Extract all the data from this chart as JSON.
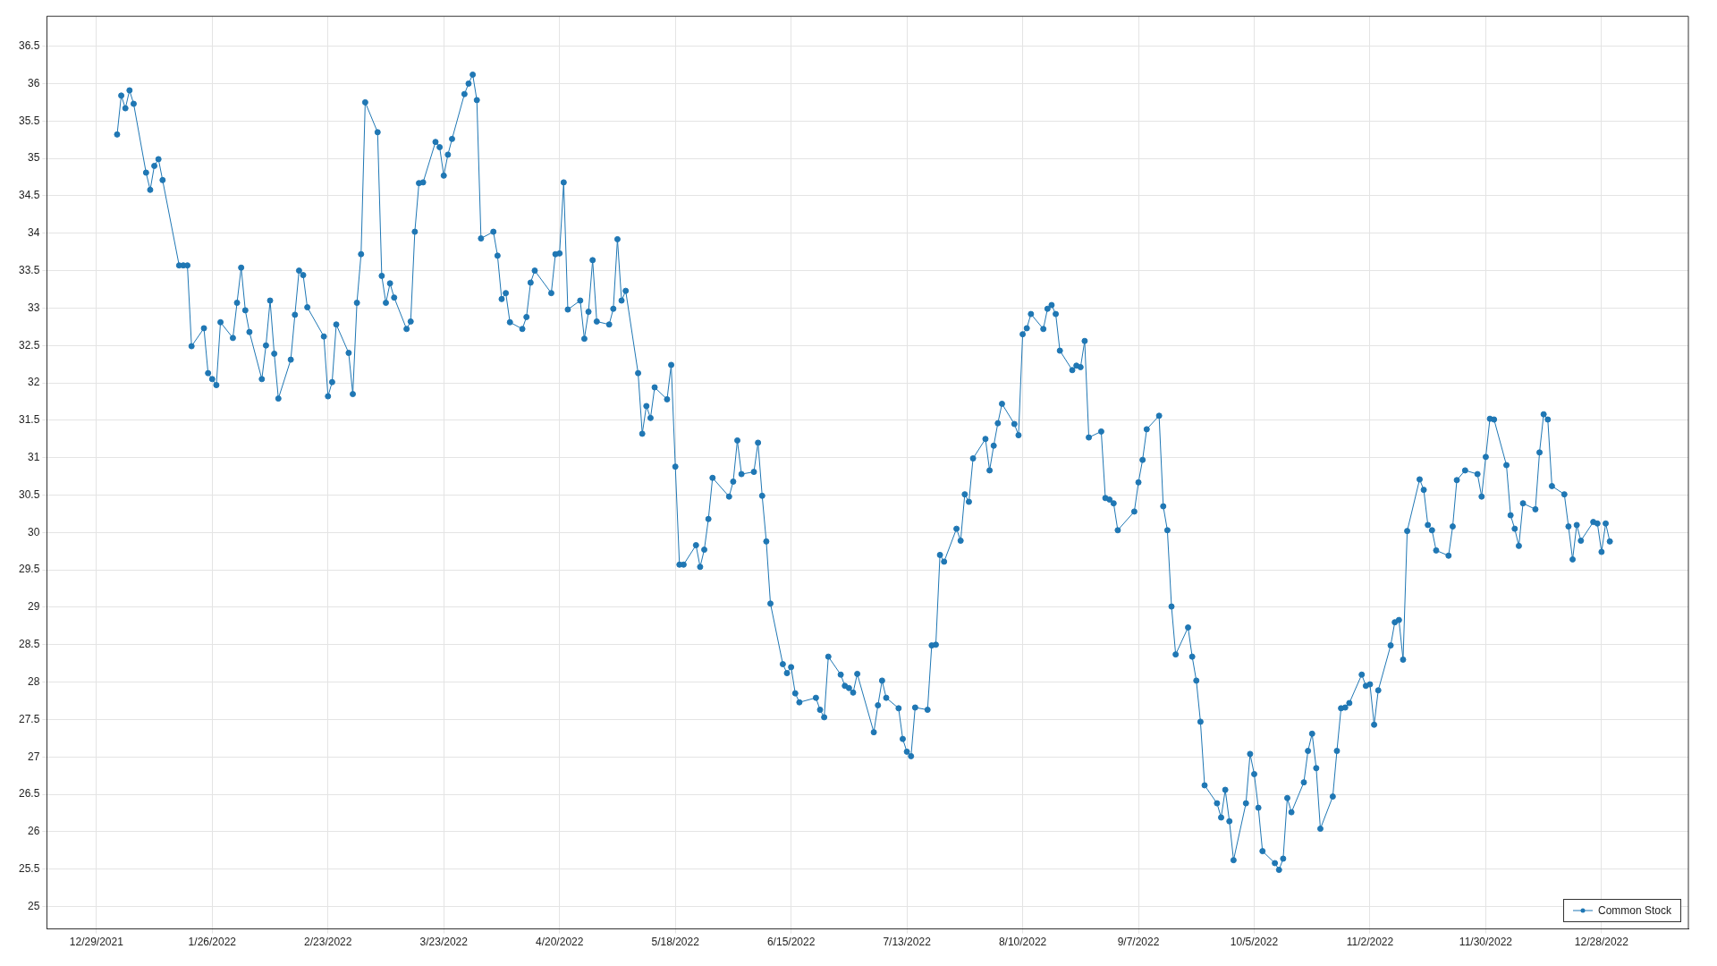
{
  "chart_data": {
    "type": "line",
    "x": [
      "2022-01-03",
      "2022-01-04",
      "2022-01-05",
      "2022-01-06",
      "2022-01-07",
      "2022-01-10",
      "2022-01-11",
      "2022-01-12",
      "2022-01-13",
      "2022-01-14",
      "2022-01-18",
      "2022-01-19",
      "2022-01-20",
      "2022-01-21",
      "2022-01-24",
      "2022-01-25",
      "2022-01-26",
      "2022-01-27",
      "2022-01-28",
      "2022-01-31",
      "2022-02-01",
      "2022-02-02",
      "2022-02-03",
      "2022-02-04",
      "2022-02-07",
      "2022-02-08",
      "2022-02-09",
      "2022-02-10",
      "2022-02-11",
      "2022-02-14",
      "2022-02-15",
      "2022-02-16",
      "2022-02-17",
      "2022-02-18",
      "2022-02-22",
      "2022-02-23",
      "2022-02-24",
      "2022-02-25",
      "2022-02-28",
      "2022-03-01",
      "2022-03-02",
      "2022-03-03",
      "2022-03-04",
      "2022-03-07",
      "2022-03-08",
      "2022-03-09",
      "2022-03-10",
      "2022-03-11",
      "2022-03-14",
      "2022-03-15",
      "2022-03-16",
      "2022-03-17",
      "2022-03-18",
      "2022-03-21",
      "2022-03-22",
      "2022-03-23",
      "2022-03-24",
      "2022-03-25",
      "2022-03-28",
      "2022-03-29",
      "2022-03-30",
      "2022-03-31",
      "2022-04-01",
      "2022-04-04",
      "2022-04-05",
      "2022-04-06",
      "2022-04-07",
      "2022-04-08",
      "2022-04-11",
      "2022-04-12",
      "2022-04-13",
      "2022-04-14",
      "2022-04-18",
      "2022-04-19",
      "2022-04-20",
      "2022-04-21",
      "2022-04-22",
      "2022-04-25",
      "2022-04-26",
      "2022-04-27",
      "2022-04-28",
      "2022-04-29",
      "2022-05-02",
      "2022-05-03",
      "2022-05-04",
      "2022-05-05",
      "2022-05-06",
      "2022-05-09",
      "2022-05-10",
      "2022-05-11",
      "2022-05-12",
      "2022-05-13",
      "2022-05-16",
      "2022-05-17",
      "2022-05-18",
      "2022-05-19",
      "2022-05-20",
      "2022-05-23",
      "2022-05-24",
      "2022-05-25",
      "2022-05-26",
      "2022-05-27",
      "2022-05-31",
      "2022-06-01",
      "2022-06-02",
      "2022-06-03",
      "2022-06-06",
      "2022-06-07",
      "2022-06-08",
      "2022-06-09",
      "2022-06-10",
      "2022-06-13",
      "2022-06-14",
      "2022-06-15",
      "2022-06-16",
      "2022-06-17",
      "2022-06-21",
      "2022-06-22",
      "2022-06-23",
      "2022-06-24",
      "2022-06-27",
      "2022-06-28",
      "2022-06-29",
      "2022-06-30",
      "2022-07-01",
      "2022-07-05",
      "2022-07-06",
      "2022-07-07",
      "2022-07-08",
      "2022-07-11",
      "2022-07-12",
      "2022-07-13",
      "2022-07-14",
      "2022-07-15",
      "2022-07-18",
      "2022-07-19",
      "2022-07-20",
      "2022-07-21",
      "2022-07-22",
      "2022-07-25",
      "2022-07-26",
      "2022-07-27",
      "2022-07-28",
      "2022-07-29",
      "2022-08-01",
      "2022-08-02",
      "2022-08-03",
      "2022-08-04",
      "2022-08-05",
      "2022-08-08",
      "2022-08-09",
      "2022-08-10",
      "2022-08-11",
      "2022-08-12",
      "2022-08-15",
      "2022-08-16",
      "2022-08-17",
      "2022-08-18",
      "2022-08-19",
      "2022-08-22",
      "2022-08-23",
      "2022-08-24",
      "2022-08-25",
      "2022-08-26",
      "2022-08-29",
      "2022-08-30",
      "2022-08-31",
      "2022-09-01",
      "2022-09-02",
      "2022-09-06",
      "2022-09-07",
      "2022-09-08",
      "2022-09-09",
      "2022-09-12",
      "2022-09-13",
      "2022-09-14",
      "2022-09-15",
      "2022-09-16",
      "2022-09-19",
      "2022-09-20",
      "2022-09-21",
      "2022-09-22",
      "2022-09-23",
      "2022-09-26",
      "2022-09-27",
      "2022-09-28",
      "2022-09-29",
      "2022-09-30",
      "2022-10-03",
      "2022-10-04",
      "2022-10-05",
      "2022-10-06",
      "2022-10-07",
      "2022-10-10",
      "2022-10-11",
      "2022-10-12",
      "2022-10-13",
      "2022-10-14",
      "2022-10-17",
      "2022-10-18",
      "2022-10-19",
      "2022-10-20",
      "2022-10-21",
      "2022-10-24",
      "2022-10-25",
      "2022-10-26",
      "2022-10-27",
      "2022-10-28",
      "2022-10-31",
      "2022-11-01",
      "2022-11-02",
      "2022-11-03",
      "2022-11-04",
      "2022-11-07",
      "2022-11-08",
      "2022-11-09",
      "2022-11-10",
      "2022-11-11",
      "2022-11-14",
      "2022-11-15",
      "2022-11-16",
      "2022-11-17",
      "2022-11-18",
      "2022-11-21",
      "2022-11-22",
      "2022-11-23",
      "2022-11-25",
      "2022-11-28",
      "2022-11-29",
      "2022-11-30",
      "2022-12-01",
      "2022-12-02",
      "2022-12-05",
      "2022-12-06",
      "2022-12-07",
      "2022-12-08",
      "2022-12-09",
      "2022-12-12",
      "2022-12-13",
      "2022-12-14",
      "2022-12-15",
      "2022-12-16",
      "2022-12-19",
      "2022-12-20",
      "2022-12-21",
      "2022-12-22",
      "2022-12-23",
      "2022-12-26",
      "2022-12-27",
      "2022-12-28",
      "2022-12-29",
      "2022-12-30"
    ],
    "series": [
      {
        "name": "Common Stock",
        "color": "#1f77b4",
        "values": [
          35.32,
          35.84,
          35.67,
          35.91,
          35.73,
          34.81,
          34.58,
          34.9,
          34.99,
          34.71,
          33.57,
          33.57,
          33.57,
          32.49,
          32.73,
          32.13,
          32.05,
          31.97,
          32.81,
          32.6,
          33.07,
          33.54,
          32.97,
          32.68,
          32.05,
          32.5,
          33.1,
          32.39,
          31.79,
          32.31,
          32.91,
          33.5,
          33.44,
          33.01,
          32.62,
          31.82,
          32.01,
          32.78,
          32.4,
          31.85,
          33.07,
          33.72,
          35.75,
          35.35,
          33.43,
          33.07,
          33.33,
          33.14,
          32.72,
          32.82,
          34.02,
          34.67,
          34.68,
          35.22,
          35.15,
          34.77,
          35.05,
          35.26,
          35.86,
          36.0,
          36.12,
          35.78,
          33.93,
          34.02,
          33.7,
          33.12,
          33.2,
          32.81,
          32.72,
          32.88,
          33.34,
          33.5,
          33.2,
          33.72,
          33.73,
          34.68,
          32.98,
          33.1,
          32.59,
          32.95,
          33.64,
          32.82,
          32.78,
          32.99,
          33.92,
          33.1,
          33.23,
          32.13,
          31.32,
          31.69,
          31.53,
          31.94,
          31.78,
          32.24,
          30.88,
          29.57,
          29.57,
          29.83,
          29.54,
          29.77,
          30.18,
          30.73,
          30.48,
          30.68,
          31.23,
          30.78,
          30.81,
          31.2,
          30.49,
          29.88,
          29.05,
          28.24,
          28.12,
          28.2,
          27.85,
          27.73,
          27.79,
          27.63,
          27.53,
          28.34,
          28.1,
          27.95,
          27.92,
          27.86,
          28.11,
          27.33,
          27.69,
          28.02,
          27.79,
          27.65,
          27.24,
          27.07,
          27.01,
          27.66,
          27.63,
          28.49,
          28.5,
          29.7,
          29.61,
          30.05,
          29.89,
          30.51,
          30.41,
          30.99,
          31.25,
          30.83,
          31.16,
          31.46,
          31.72,
          31.45,
          31.3,
          32.65,
          32.73,
          32.92,
          32.72,
          32.99,
          33.04,
          32.92,
          32.43,
          32.17,
          32.23,
          32.21,
          32.56,
          31.27,
          31.35,
          30.46,
          30.44,
          30.39,
          30.03,
          30.28,
          30.67,
          30.97,
          31.38,
          31.56,
          30.35,
          30.03,
          29.01,
          28.37,
          28.73,
          28.34,
          28.02,
          27.47,
          26.62,
          26.38,
          26.19,
          26.56,
          26.14,
          25.62,
          26.38,
          27.04,
          26.77,
          26.32,
          25.74,
          25.58,
          25.49,
          25.64,
          26.45,
          26.26,
          26.66,
          27.08,
          27.31,
          26.85,
          26.04,
          26.47,
          27.08,
          27.65,
          27.66,
          27.72,
          28.1,
          27.95,
          27.97,
          27.43,
          27.89,
          28.49,
          28.8,
          28.83,
          28.3,
          30.02,
          30.71,
          30.57,
          30.1,
          30.03,
          29.76,
          29.69,
          30.08,
          30.7,
          30.83,
          30.78,
          30.48,
          31.01,
          31.52,
          31.51,
          30.9,
          30.23,
          30.05,
          29.82,
          30.39,
          30.31,
          31.07,
          31.58,
          31.51,
          30.62,
          30.51,
          30.08,
          29.64,
          30.1,
          29.89,
          30.14,
          30.12,
          29.74,
          30.12,
          29.88
        ]
      }
    ],
    "xlim": [
      "2021-12-17",
      "2023-01-18"
    ],
    "xticks": [
      {
        "value": "2021-12-29",
        "label": "12/29/2021"
      },
      {
        "value": "2022-01-26",
        "label": "1/26/2022"
      },
      {
        "value": "2022-02-23",
        "label": "2/23/2022"
      },
      {
        "value": "2022-03-23",
        "label": "3/23/2022"
      },
      {
        "value": "2022-04-20",
        "label": "4/20/2022"
      },
      {
        "value": "2022-05-18",
        "label": "5/18/2022"
      },
      {
        "value": "2022-06-15",
        "label": "6/15/2022"
      },
      {
        "value": "2022-07-13",
        "label": "7/13/2022"
      },
      {
        "value": "2022-08-10",
        "label": "8/10/2022"
      },
      {
        "value": "2022-09-07",
        "label": "9/7/2022"
      },
      {
        "value": "2022-10-05",
        "label": "10/5/2022"
      },
      {
        "value": "2022-11-02",
        "label": "11/2/2022"
      },
      {
        "value": "2022-11-30",
        "label": "11/30/2022"
      },
      {
        "value": "2022-12-28",
        "label": "12/28/2022"
      }
    ],
    "ylim": [
      24.7,
      36.9
    ],
    "yticks": [
      25,
      25.5,
      26,
      26.5,
      27,
      27.5,
      28,
      28.5,
      29,
      29.5,
      30,
      30.5,
      31,
      31.5,
      32,
      32.5,
      33,
      33.5,
      34,
      34.5,
      35,
      35.5,
      36,
      36.5
    ],
    "grid": true,
    "marker": "circle",
    "line_style": "solid",
    "legend": "bottom right"
  }
}
